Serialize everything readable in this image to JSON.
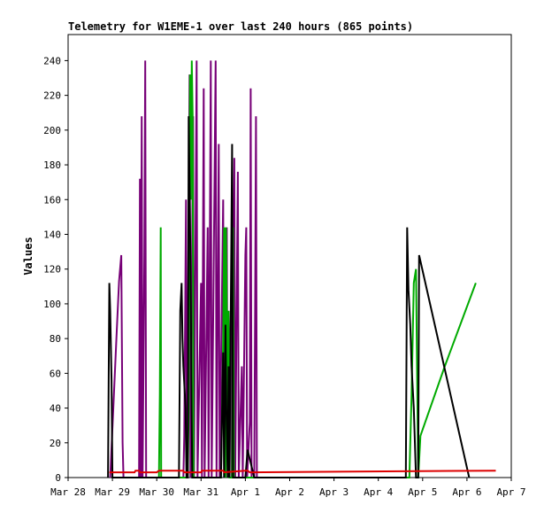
{
  "chart_data": {
    "type": "line",
    "title": "Telemetry for W1EME-1 over last 240 hours (865 points)",
    "xlabel": "",
    "ylabel": "Values",
    "x_ticks": [
      "Mar 28",
      "Mar 29",
      "Mar 30",
      "Mar 31",
      "Apr 1",
      "Apr 2",
      "Apr 3",
      "Apr 4",
      "Apr 5",
      "Apr 6",
      "Apr 7"
    ],
    "xlim_days": [
      0,
      10
    ],
    "ylim": [
      0,
      255
    ],
    "y_ticks": [
      0,
      20,
      40,
      60,
      80,
      100,
      120,
      140,
      160,
      180,
      200,
      220,
      240
    ],
    "grid": false,
    "legend": "none",
    "series": [
      {
        "color": "#770077",
        "points": [
          [
            0.95,
            0
          ],
          [
            1.02,
            40
          ],
          [
            1.09,
            80
          ],
          [
            1.15,
            113
          ],
          [
            1.2,
            128
          ],
          [
            1.23,
            20
          ],
          [
            1.25,
            0
          ],
          [
            1.6,
            0
          ],
          [
            1.62,
            172
          ],
          [
            1.64,
            0
          ],
          [
            1.66,
            208
          ],
          [
            1.68,
            0
          ],
          [
            1.72,
            128
          ],
          [
            1.74,
            240
          ],
          [
            1.76,
            0
          ],
          [
            1.95,
            0
          ],
          [
            2.55,
            0
          ],
          [
            2.6,
            0
          ],
          [
            2.62,
            24
          ],
          [
            2.66,
            160
          ],
          [
            2.68,
            0
          ],
          [
            2.74,
            232
          ],
          [
            2.76,
            0
          ],
          [
            2.82,
            208
          ],
          [
            2.84,
            0
          ],
          [
            2.9,
            240
          ],
          [
            2.92,
            0
          ],
          [
            3.0,
            112
          ],
          [
            3.02,
            0
          ],
          [
            3.06,
            224
          ],
          [
            3.08,
            0
          ],
          [
            3.15,
            144
          ],
          [
            3.17,
            0
          ],
          [
            3.22,
            240
          ],
          [
            3.24,
            0
          ],
          [
            3.33,
            240
          ],
          [
            3.35,
            0
          ],
          [
            3.4,
            192
          ],
          [
            3.42,
            0
          ],
          [
            3.5,
            160
          ],
          [
            3.52,
            0
          ],
          [
            3.58,
            144
          ],
          [
            3.6,
            0
          ],
          [
            3.67,
            96
          ],
          [
            3.69,
            0
          ],
          [
            3.75,
            184
          ],
          [
            3.77,
            0
          ],
          [
            3.83,
            176
          ],
          [
            3.85,
            0
          ],
          [
            3.92,
            64
          ],
          [
            3.94,
            0
          ],
          [
            4.0,
            128
          ],
          [
            4.02,
            144
          ],
          [
            4.04,
            0
          ],
          [
            4.1,
            32
          ],
          [
            4.12,
            224
          ],
          [
            4.14,
            0
          ],
          [
            4.2,
            0
          ],
          [
            4.22,
            96
          ],
          [
            4.24,
            208
          ],
          [
            4.26,
            0
          ],
          [
            4.4,
            0
          ]
        ]
      },
      {
        "color": "#00aa00",
        "points": [
          [
            2.05,
            0
          ],
          [
            2.07,
            48
          ],
          [
            2.09,
            144
          ],
          [
            2.1,
            0
          ],
          [
            2.55,
            0
          ],
          [
            2.7,
            0
          ],
          [
            2.72,
            40
          ],
          [
            2.75,
            232
          ],
          [
            2.77,
            160
          ],
          [
            2.79,
            240
          ],
          [
            2.81,
            208
          ],
          [
            2.83,
            0
          ],
          [
            3.45,
            0
          ],
          [
            3.5,
            80
          ],
          [
            3.52,
            144
          ],
          [
            3.55,
            0
          ],
          [
            3.56,
            144
          ],
          [
            3.58,
            96
          ],
          [
            3.6,
            0
          ],
          [
            3.62,
            96
          ],
          [
            3.64,
            0
          ],
          [
            3.7,
            0
          ],
          [
            3.72,
            144
          ],
          [
            3.74,
            0
          ],
          [
            7.65,
            0
          ],
          [
            7.7,
            0
          ],
          [
            7.75,
            48
          ],
          [
            7.8,
            112
          ],
          [
            7.85,
            120
          ],
          [
            7.9,
            0
          ],
          [
            7.95,
            24
          ],
          [
            8.5,
            64
          ],
          [
            9.2,
            112
          ]
        ]
      },
      {
        "color": "#000000",
        "points": [
          [
            0.9,
            0
          ],
          [
            0.93,
            112
          ],
          [
            0.95,
            96
          ],
          [
            0.98,
            56
          ],
          [
            1.0,
            0
          ],
          [
            2.5,
            0
          ],
          [
            2.53,
            96
          ],
          [
            2.56,
            112
          ],
          [
            2.58,
            80
          ],
          [
            2.6,
            64
          ],
          [
            2.65,
            40
          ],
          [
            2.67,
            0
          ],
          [
            2.7,
            0
          ],
          [
            2.72,
            208
          ],
          [
            2.75,
            148
          ],
          [
            2.77,
            96
          ],
          [
            2.8,
            0
          ],
          [
            3.45,
            0
          ],
          [
            3.5,
            72
          ],
          [
            3.52,
            0
          ],
          [
            3.55,
            88
          ],
          [
            3.57,
            40
          ],
          [
            3.6,
            0
          ],
          [
            3.62,
            64
          ],
          [
            3.64,
            0
          ],
          [
            3.7,
            192
          ],
          [
            3.72,
            0
          ],
          [
            4.0,
            0
          ],
          [
            4.05,
            16
          ],
          [
            4.2,
            0
          ],
          [
            7.62,
            0
          ],
          [
            7.65,
            144
          ],
          [
            7.68,
            108
          ],
          [
            7.72,
            88
          ],
          [
            7.75,
            64
          ],
          [
            7.8,
            40
          ],
          [
            7.85,
            0
          ],
          [
            7.9,
            0
          ],
          [
            7.92,
            128
          ],
          [
            9.05,
            0
          ]
        ]
      },
      {
        "color": "#dd0000",
        "points": [
          [
            0.93,
            3
          ],
          [
            1.5,
            3
          ],
          [
            1.52,
            4
          ],
          [
            1.6,
            4
          ],
          [
            1.62,
            3
          ],
          [
            2.0,
            3
          ],
          [
            2.05,
            4
          ],
          [
            2.6,
            4
          ],
          [
            2.62,
            3
          ],
          [
            3.0,
            3
          ],
          [
            3.02,
            4
          ],
          [
            3.5,
            4
          ],
          [
            3.52,
            3
          ],
          [
            4.0,
            4
          ],
          [
            4.05,
            4
          ],
          [
            4.1,
            3
          ],
          [
            9.65,
            4
          ]
        ]
      }
    ]
  }
}
